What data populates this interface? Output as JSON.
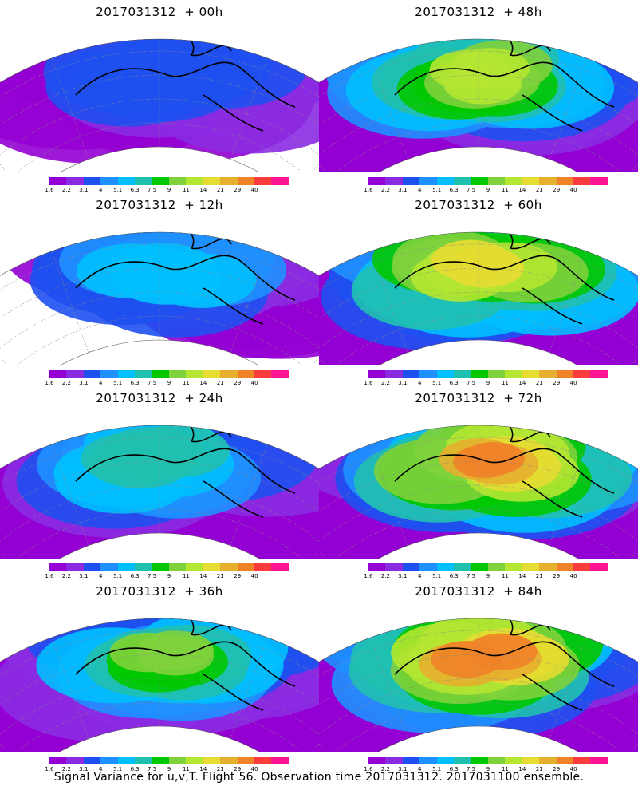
{
  "panels": [
    {
      "title": "2017031312  + 00h",
      "intensity": 0
    },
    {
      "title": "2017031312  + 48h",
      "intensity": 4
    },
    {
      "title": "2017031312  + 12h",
      "intensity": 1
    },
    {
      "title": "2017031312  + 60h",
      "intensity": 5
    },
    {
      "title": "2017031312  + 24h",
      "intensity": 2
    },
    {
      "title": "2017031312  + 72h",
      "intensity": 6
    },
    {
      "title": "2017031312  + 36h",
      "intensity": 3
    },
    {
      "title": "2017031312  + 84h",
      "intensity": 7
    }
  ],
  "colorbar": {
    "labels": [
      "1.6",
      "2.2",
      "3.1",
      "4",
      "5.1",
      "6.3",
      "7.5",
      "9",
      "11",
      "14",
      "21",
      "29",
      "40"
    ],
    "colors": [
      "#9400d3",
      "#8a2be2",
      "#1e50f0",
      "#1e90ff",
      "#00bfff",
      "#20c0b0",
      "#00c800",
      "#7fd23c",
      "#b4e632",
      "#e6dc32",
      "#e6af2d",
      "#f08228",
      "#fa3c3c",
      "#ff1493"
    ]
  },
  "caption": "Signal Variance for u,v,T. Flight 56. Observation time 2017031312. 2017031100 ensemble."
}
